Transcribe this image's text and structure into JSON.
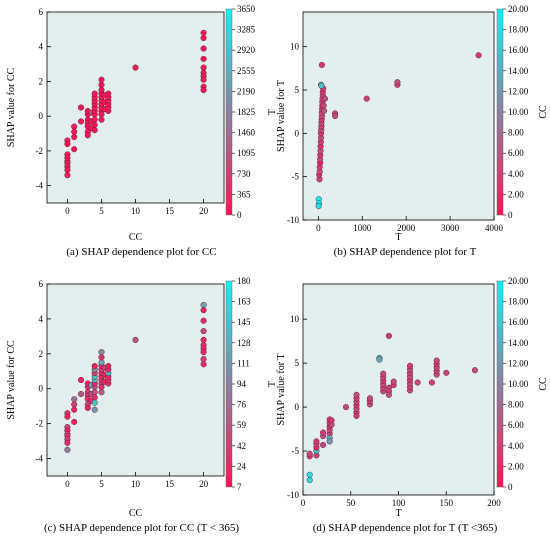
{
  "colors": {
    "plot_background": "#e3efee",
    "low": "#ff1456",
    "high": "#14f0f0",
    "marker_edge": "#5c2338"
  },
  "chart_data": [
    {
      "type": "scatter",
      "caption": "(a) SHAP dependence plot for CC",
      "xlabel": "CC",
      "ylabel": "SHAP value for CC",
      "xlim": [
        -3,
        23
      ],
      "ylim": [
        -5,
        6
      ],
      "xticks": [
        0,
        5,
        10,
        15,
        20
      ],
      "yticks": [
        -4,
        -2,
        0,
        2,
        4,
        6
      ],
      "colorbar": {
        "label": "T",
        "min": 0,
        "max": 3650,
        "ticks": [
          "3650",
          "3285",
          "2920",
          "2555",
          "2190",
          "1825",
          "1460",
          "1095",
          "730",
          "365",
          "0"
        ]
      },
      "points": [
        [
          0,
          -1.4,
          40
        ],
        [
          0,
          -1.6,
          30
        ],
        [
          0,
          -2.2,
          60
        ],
        [
          0,
          -2.4,
          20
        ],
        [
          0,
          -2.6,
          80
        ],
        [
          0,
          -2.7,
          30
        ],
        [
          0,
          -2.9,
          50
        ],
        [
          0,
          -3.1,
          20
        ],
        [
          0,
          -3.4,
          40
        ],
        [
          1,
          -0.6,
          100
        ],
        [
          1,
          -0.9,
          60
        ],
        [
          1,
          -1.2,
          30
        ],
        [
          1,
          -1.9,
          20
        ],
        [
          2,
          -0.3,
          80
        ],
        [
          2,
          0.5,
          20
        ],
        [
          3,
          -0.2,
          50
        ],
        [
          3,
          -0.4,
          40
        ],
        [
          3,
          -0.6,
          30
        ],
        [
          3,
          -0.9,
          60
        ],
        [
          3,
          -1.1,
          20
        ],
        [
          3,
          0.1,
          40
        ],
        [
          3,
          0.3,
          20
        ],
        [
          3.5,
          0.2,
          900
        ],
        [
          3.5,
          -0.3,
          60
        ],
        [
          3.5,
          -0.7,
          30
        ],
        [
          4,
          0.1,
          80
        ],
        [
          4,
          0.3,
          20
        ],
        [
          4,
          0.5,
          60
        ],
        [
          4,
          0.7,
          30
        ],
        [
          4,
          0.9,
          50
        ],
        [
          4,
          1.1,
          40
        ],
        [
          4,
          1.3,
          20
        ],
        [
          4,
          -0.2,
          80
        ],
        [
          4,
          -0.5,
          30
        ],
        [
          4,
          -0.8,
          20
        ],
        [
          5,
          0.3,
          60
        ],
        [
          5,
          0.5,
          40
        ],
        [
          5,
          0.7,
          20
        ],
        [
          5,
          0.9,
          30
        ],
        [
          5,
          1.1,
          50
        ],
        [
          5,
          1.3,
          20
        ],
        [
          5,
          1.5,
          60
        ],
        [
          5,
          1.8,
          40
        ],
        [
          5,
          2.1,
          20
        ],
        [
          5,
          0.1,
          30
        ],
        [
          5,
          -0.2,
          80
        ],
        [
          5.5,
          0.4,
          30
        ],
        [
          5.5,
          0.8,
          20
        ],
        [
          5.5,
          1.2,
          50
        ],
        [
          6,
          0.3,
          40
        ],
        [
          6,
          0.5,
          30
        ],
        [
          6,
          0.7,
          20
        ],
        [
          6,
          0.9,
          60
        ],
        [
          6,
          1.1,
          30
        ],
        [
          6,
          1.3,
          20
        ],
        [
          10,
          2.8,
          80
        ],
        [
          20,
          4.8,
          40
        ],
        [
          20,
          4.5,
          20
        ],
        [
          20,
          3.9,
          30
        ],
        [
          20,
          3.3,
          60
        ],
        [
          20,
          2.8,
          20
        ],
        [
          20,
          2.5,
          40
        ],
        [
          20,
          2.3,
          30
        ],
        [
          20,
          2.1,
          20
        ],
        [
          20,
          1.7,
          50
        ],
        [
          20,
          1.5,
          30
        ]
      ]
    },
    {
      "type": "scatter",
      "caption": "(b) SHAP dependence plot for T",
      "xlabel": "T",
      "ylabel": "SHAP value for T",
      "xlim": [
        -350,
        4000
      ],
      "ylim": [
        -10,
        14
      ],
      "xticks": [
        0,
        1000,
        2000,
        3000,
        4000
      ],
      "yticks": [
        -10,
        -5,
        0,
        5,
        10
      ],
      "colorbar": {
        "label": "CC",
        "min": 0,
        "max": 20,
        "ticks": [
          "20.00",
          "18.00",
          "16.00",
          "14.00",
          "12.00",
          "10.00",
          "8.00",
          "6.00",
          "4.00",
          "2.00",
          "0"
        ]
      },
      "points": [
        [
          10,
          -7.6,
          20
        ],
        [
          15,
          -8.1,
          20
        ],
        [
          8,
          -8.4,
          18
        ],
        [
          25,
          -5.3,
          4
        ],
        [
          20,
          -4.8,
          3
        ],
        [
          30,
          -4.4,
          5
        ],
        [
          30,
          -3.9,
          4
        ],
        [
          40,
          -3.4,
          1
        ],
        [
          40,
          -3.0,
          5
        ],
        [
          45,
          -2.5,
          3
        ],
        [
          50,
          -2.0,
          5
        ],
        [
          50,
          -1.5,
          2
        ],
        [
          55,
          -1.0,
          4
        ],
        [
          60,
          -0.5,
          5
        ],
        [
          60,
          0.0,
          3
        ],
        [
          65,
          0.4,
          5
        ],
        [
          70,
          0.8,
          4
        ],
        [
          70,
          1.2,
          5
        ],
        [
          75,
          1.6,
          3
        ],
        [
          80,
          2.0,
          5
        ],
        [
          80,
          2.4,
          4
        ],
        [
          85,
          2.8,
          5
        ],
        [
          90,
          3.2,
          3
        ],
        [
          90,
          3.6,
          5
        ],
        [
          95,
          4.0,
          4
        ],
        [
          100,
          4.4,
          5
        ],
        [
          100,
          4.8,
          3
        ],
        [
          110,
          5.2,
          4
        ],
        [
          60,
          5.6,
          14
        ],
        [
          70,
          5.5,
          16
        ],
        [
          80,
          7.9,
          3
        ],
        [
          120,
          3.2,
          4
        ],
        [
          150,
          4.0,
          5
        ],
        [
          130,
          2.6,
          6
        ],
        [
          380,
          2.3,
          4
        ],
        [
          380,
          2.0,
          5
        ],
        [
          1100,
          4.0,
          4
        ],
        [
          1800,
          5.6,
          3
        ],
        [
          1800,
          5.9,
          5
        ],
        [
          3650,
          9.0,
          3
        ]
      ]
    },
    {
      "type": "scatter",
      "caption": "(c) SHAP dependence plot for CC (T < 365)",
      "xlabel": "CC",
      "ylabel": "SHAP value for CC",
      "xlim": [
        -3,
        23
      ],
      "ylim": [
        -5,
        6
      ],
      "xticks": [
        0,
        5,
        10,
        15,
        20
      ],
      "yticks": [
        -4,
        -2,
        0,
        2,
        4,
        6
      ],
      "colorbar": {
        "label": "T",
        "min": 7,
        "max": 180,
        "ticks": [
          "180",
          "163",
          "145",
          "128",
          "111",
          "94",
          "76",
          "59",
          "42",
          "24",
          "7"
        ]
      },
      "points": [
        [
          0,
          -1.4,
          30
        ],
        [
          0,
          -1.6,
          20
        ],
        [
          0,
          -2.2,
          50
        ],
        [
          0,
          -2.4,
          15
        ],
        [
          0,
          -2.6,
          60
        ],
        [
          0,
          -2.7,
          25
        ],
        [
          0,
          -2.9,
          40
        ],
        [
          0,
          -3.1,
          20
        ],
        [
          0,
          -3.5,
          90
        ],
        [
          1,
          -0.6,
          80
        ],
        [
          1,
          -0.9,
          40
        ],
        [
          1,
          -1.2,
          20
        ],
        [
          1,
          -1.9,
          15
        ],
        [
          2,
          -0.3,
          60
        ],
        [
          2,
          0.5,
          20
        ],
        [
          3,
          -0.2,
          40
        ],
        [
          3,
          -0.4,
          30
        ],
        [
          3,
          -0.6,
          25
        ],
        [
          3,
          -0.9,
          50
        ],
        [
          3,
          -1.1,
          20
        ],
        [
          3,
          0.1,
          30
        ],
        [
          3,
          0.3,
          15
        ],
        [
          3.5,
          0.2,
          120
        ],
        [
          3.5,
          -0.3,
          50
        ],
        [
          3.5,
          -0.7,
          25
        ],
        [
          4,
          0.1,
          60
        ],
        [
          4,
          0.3,
          20
        ],
        [
          4,
          0.5,
          130
        ],
        [
          4,
          0.7,
          140
        ],
        [
          4,
          0.9,
          40
        ],
        [
          4,
          1.1,
          100
        ],
        [
          4,
          1.3,
          20
        ],
        [
          4,
          -0.2,
          60
        ],
        [
          4,
          -0.5,
          25
        ],
        [
          4,
          -0.8,
          150
        ],
        [
          4,
          -1.2,
          110
        ],
        [
          5,
          0.3,
          50
        ],
        [
          5,
          0.5,
          30
        ],
        [
          5,
          0.7,
          20
        ],
        [
          5,
          0.9,
          25
        ],
        [
          5,
          1.1,
          40
        ],
        [
          5,
          1.3,
          20
        ],
        [
          5,
          1.5,
          120
        ],
        [
          5,
          1.8,
          30
        ],
        [
          5,
          2.1,
          100
        ],
        [
          5,
          0.1,
          25
        ],
        [
          5,
          -0.2,
          60
        ],
        [
          5.5,
          0.4,
          25
        ],
        [
          5.5,
          0.8,
          20
        ],
        [
          5.5,
          1.2,
          40
        ],
        [
          6,
          0.3,
          30
        ],
        [
          6,
          0.5,
          25
        ],
        [
          6,
          0.7,
          20
        ],
        [
          6,
          0.9,
          140
        ],
        [
          6,
          1.1,
          25
        ],
        [
          6,
          1.3,
          20
        ],
        [
          10,
          2.8,
          60
        ],
        [
          20,
          4.8,
          120
        ],
        [
          20,
          4.5,
          20
        ],
        [
          20,
          3.9,
          25
        ],
        [
          20,
          3.3,
          50
        ],
        [
          20,
          2.8,
          20
        ],
        [
          20,
          2.5,
          30
        ],
        [
          20,
          2.3,
          25
        ],
        [
          20,
          2.1,
          20
        ],
        [
          20,
          1.7,
          40
        ],
        [
          20,
          1.4,
          25
        ]
      ]
    },
    {
      "type": "scatter",
      "caption": "(d) SHAP dependence plot for T (T <365)",
      "xlabel": "T",
      "ylabel": "SHAP value for T",
      "xlim": [
        0,
        200
      ],
      "ylim": [
        -10,
        14
      ],
      "xticks": [
        0,
        50,
        100,
        150,
        200
      ],
      "yticks": [
        -10,
        -5,
        0,
        5,
        10
      ],
      "colorbar": {
        "label": "CC",
        "min": 0,
        "max": 20,
        "ticks": [
          "20.00",
          "18.00",
          "16.00",
          "14.00",
          "12.00",
          "10.00",
          "8.00",
          "6.00",
          "4.00",
          "2.00",
          "0"
        ]
      },
      "points": [
        [
          7,
          -7.7,
          19
        ],
        [
          7,
          -8.3,
          18
        ],
        [
          7,
          -5.6,
          3
        ],
        [
          7,
          -5.3,
          5
        ],
        [
          14,
          -5.5,
          4
        ],
        [
          14,
          -5.0,
          16
        ],
        [
          14,
          -4.6,
          2
        ],
        [
          14,
          -4.2,
          5
        ],
        [
          14,
          -3.9,
          3
        ],
        [
          21,
          -3.3,
          5
        ],
        [
          21,
          -2.9,
          4
        ],
        [
          21,
          -4.3,
          5
        ],
        [
          28,
          -3.0,
          4
        ],
        [
          28,
          -2.6,
          5
        ],
        [
          28,
          -2.2,
          3
        ],
        [
          28,
          -1.8,
          5
        ],
        [
          28,
          -1.4,
          4
        ],
        [
          28,
          -3.5,
          14
        ],
        [
          28,
          -3.9,
          12
        ],
        [
          30,
          -2.0,
          5
        ],
        [
          30,
          -1.5,
          3
        ],
        [
          45,
          0.0,
          5
        ],
        [
          56,
          -0.6,
          4
        ],
        [
          56,
          -0.2,
          5
        ],
        [
          56,
          0.2,
          3
        ],
        [
          56,
          0.6,
          5
        ],
        [
          56,
          1.0,
          4
        ],
        [
          56,
          1.4,
          5
        ],
        [
          56,
          -1.0,
          3
        ],
        [
          70,
          0.3,
          5
        ],
        [
          70,
          0.7,
          4
        ],
        [
          70,
          1.0,
          5
        ],
        [
          80,
          5.6,
          15
        ],
        [
          80,
          5.4,
          14
        ],
        [
          84,
          1.8,
          5
        ],
        [
          84,
          2.2,
          4
        ],
        [
          84,
          2.6,
          5
        ],
        [
          84,
          3.0,
          3
        ],
        [
          84,
          3.4,
          5
        ],
        [
          84,
          3.8,
          4
        ],
        [
          90,
          8.1,
          3
        ],
        [
          90,
          2.2,
          5
        ],
        [
          90,
          1.8,
          4
        ],
        [
          90,
          1.4,
          5
        ],
        [
          95,
          2.5,
          4
        ],
        [
          95,
          2.9,
          5
        ],
        [
          112,
          1.9,
          5
        ],
        [
          112,
          2.3,
          4
        ],
        [
          112,
          2.7,
          5
        ],
        [
          112,
          3.1,
          3
        ],
        [
          112,
          3.5,
          5
        ],
        [
          112,
          3.9,
          4
        ],
        [
          112,
          4.3,
          5
        ],
        [
          112,
          4.7,
          3
        ],
        [
          120,
          2.8,
          5
        ],
        [
          135,
          2.8,
          4
        ],
        [
          140,
          3.7,
          5
        ],
        [
          140,
          4.1,
          4
        ],
        [
          140,
          4.5,
          5
        ],
        [
          140,
          4.9,
          3
        ],
        [
          140,
          5.3,
          5
        ],
        [
          150,
          3.9,
          4
        ],
        [
          180,
          4.2,
          5
        ]
      ]
    }
  ]
}
